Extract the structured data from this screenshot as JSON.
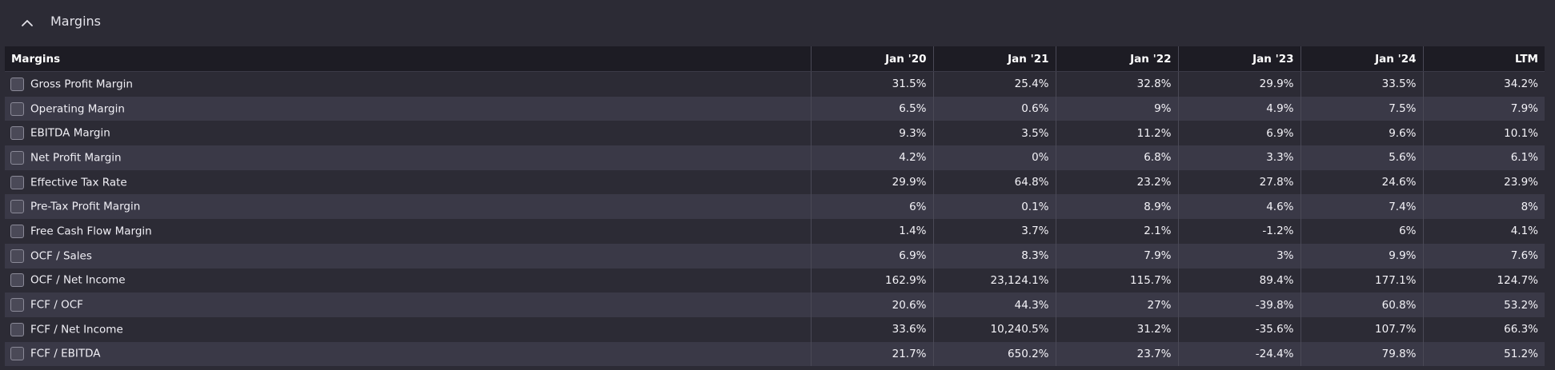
{
  "section": {
    "title": "Margins",
    "icon": "chevron-up-icon"
  },
  "table": {
    "columns": [
      "Margins",
      "Jan '20",
      "Jan '21",
      "Jan '22",
      "Jan '23",
      "Jan '24",
      "LTM"
    ],
    "rows": [
      {
        "label": "Gross Profit Margin",
        "values": [
          "31.5%",
          "25.4%",
          "32.8%",
          "29.9%",
          "33.5%",
          "34.2%"
        ]
      },
      {
        "label": "Operating Margin",
        "values": [
          "6.5%",
          "0.6%",
          "9%",
          "4.9%",
          "7.5%",
          "7.9%"
        ]
      },
      {
        "label": "EBITDA Margin",
        "values": [
          "9.3%",
          "3.5%",
          "11.2%",
          "6.9%",
          "9.6%",
          "10.1%"
        ]
      },
      {
        "label": "Net Profit Margin",
        "values": [
          "4.2%",
          "0%",
          "6.8%",
          "3.3%",
          "5.6%",
          "6.1%"
        ]
      },
      {
        "label": "Effective Tax Rate",
        "values": [
          "29.9%",
          "64.8%",
          "23.2%",
          "27.8%",
          "24.6%",
          "23.9%"
        ]
      },
      {
        "label": "Pre-Tax Profit Margin",
        "values": [
          "6%",
          "0.1%",
          "8.9%",
          "4.6%",
          "7.4%",
          "8%"
        ]
      },
      {
        "label": "Free Cash Flow Margin",
        "values": [
          "1.4%",
          "3.7%",
          "2.1%",
          "-1.2%",
          "6%",
          "4.1%"
        ]
      },
      {
        "label": "OCF / Sales",
        "values": [
          "6.9%",
          "8.3%",
          "7.9%",
          "3%",
          "9.9%",
          "7.6%"
        ]
      },
      {
        "label": "OCF / Net Income",
        "values": [
          "162.9%",
          "23,124.1%",
          "115.7%",
          "89.4%",
          "177.1%",
          "124.7%"
        ]
      },
      {
        "label": "FCF / OCF",
        "values": [
          "20.6%",
          "44.3%",
          "27%",
          "-39.8%",
          "60.8%",
          "53.2%"
        ]
      },
      {
        "label": "FCF / Net Income",
        "values": [
          "33.6%",
          "10,240.5%",
          "31.2%",
          "-35.6%",
          "107.7%",
          "66.3%"
        ]
      },
      {
        "label": "FCF / EBITDA",
        "values": [
          "21.7%",
          "650.2%",
          "23.7%",
          "-24.4%",
          "79.8%",
          "51.2%"
        ]
      }
    ]
  }
}
